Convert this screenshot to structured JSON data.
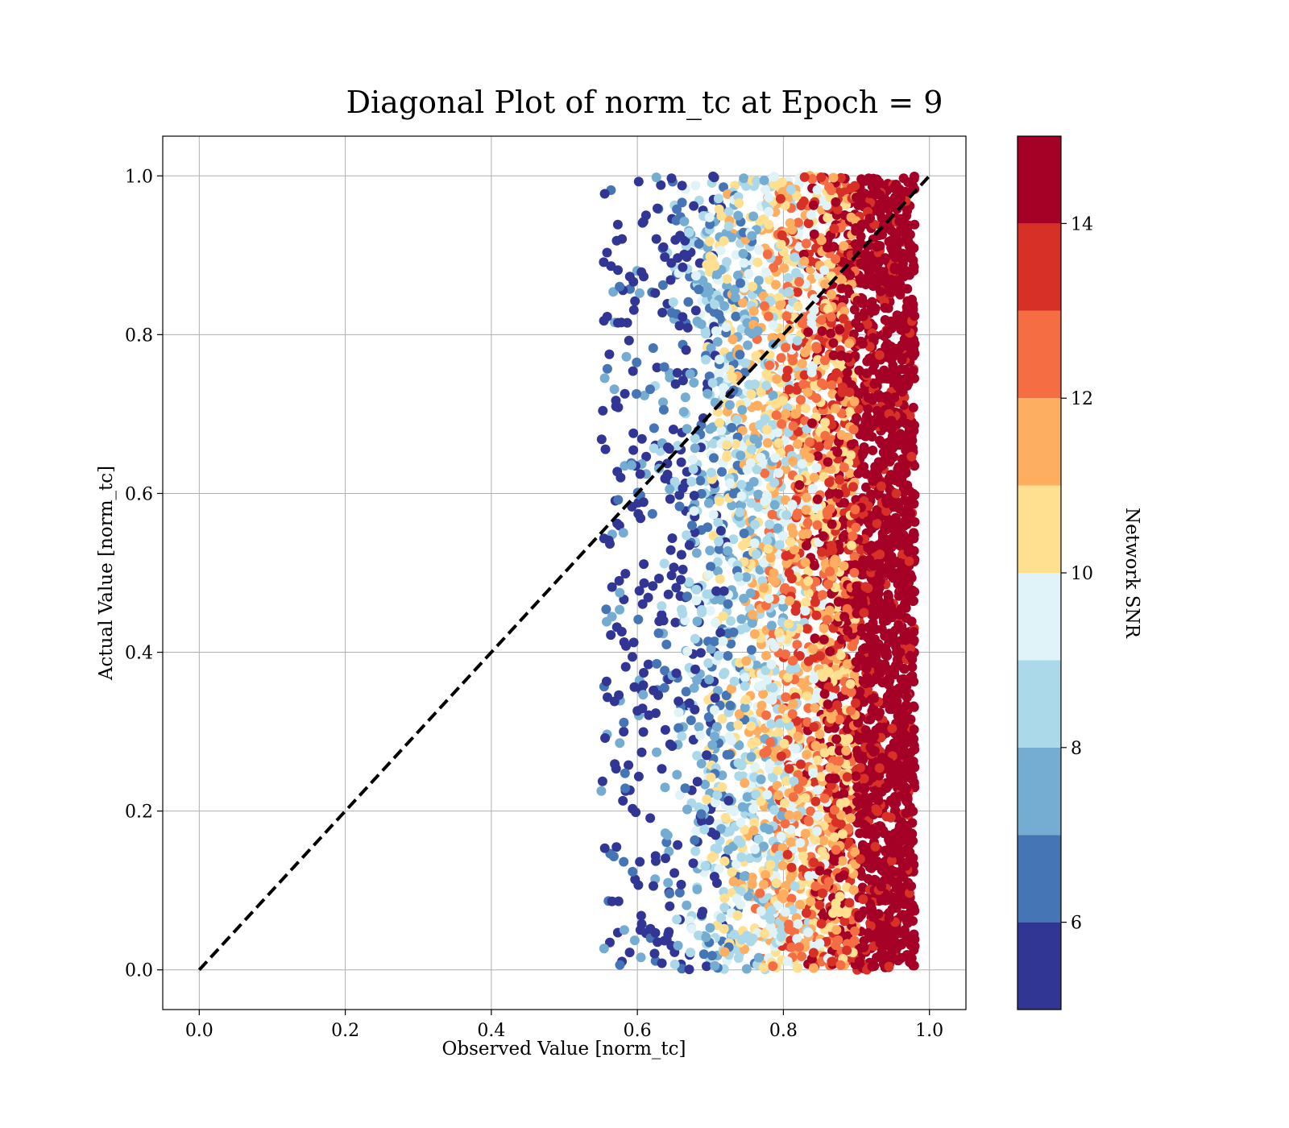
{
  "chart_data": {
    "type": "scatter",
    "title": "Diagonal Plot of norm_tc at Epoch = 9",
    "xlabel": "Observed Value [norm_tc]",
    "ylabel": "Actual Value [norm_tc]",
    "xlim": [
      -0.05,
      1.05
    ],
    "ylim": [
      -0.05,
      1.05
    ],
    "xticks": [
      "0.0",
      "0.2",
      "0.4",
      "0.6",
      "0.8",
      "1.0"
    ],
    "yticks": [
      "0.0",
      "0.2",
      "0.4",
      "0.6",
      "0.8",
      "1.0"
    ],
    "grid": true,
    "reference_line": {
      "style": "dashed",
      "color": "#000000",
      "x": [
        0.0,
        1.0
      ],
      "y": [
        0.0,
        1.0
      ]
    },
    "colorbar": {
      "label": "Network SNR",
      "range": [
        5,
        15
      ],
      "ticks": [
        "6",
        "8",
        "10",
        "12",
        "14"
      ],
      "tick_values": [
        6,
        8,
        10,
        12,
        14
      ],
      "bins": [
        {
          "from": 5,
          "to": 6,
          "color": "#313695"
        },
        {
          "from": 6,
          "to": 7,
          "color": "#4575b4"
        },
        {
          "from": 7,
          "to": 8,
          "color": "#74add1"
        },
        {
          "from": 8,
          "to": 9,
          "color": "#abd9e9"
        },
        {
          "from": 9,
          "to": 10,
          "color": "#e0f3f8"
        },
        {
          "from": 10,
          "to": 11,
          "color": "#fee090"
        },
        {
          "from": 11,
          "to": 12,
          "color": "#fdae61"
        },
        {
          "from": 12,
          "to": 13,
          "color": "#f46d43"
        },
        {
          "from": 13,
          "to": 14,
          "color": "#d73027"
        },
        {
          "from": 14,
          "to": 15,
          "color": "#a50026"
        }
      ]
    },
    "scatter_density": {
      "x_range": [
        0.55,
        0.98
      ],
      "y_range": [
        0.0,
        1.0
      ],
      "note_color_trend": "low SNR (blue) near x≈0.6, high SNR (dark red) near x≈0.95"
    }
  }
}
